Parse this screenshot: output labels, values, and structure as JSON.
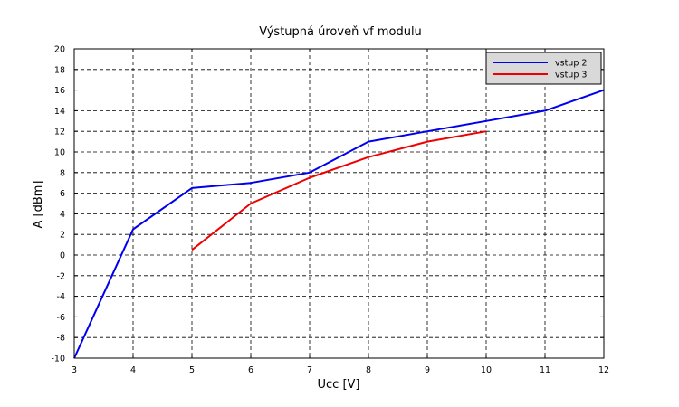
{
  "chart_data": {
    "type": "line",
    "title": "Výstupná úroveň vf modulu",
    "xlabel": "Ucc [V]",
    "ylabel": "A [dBm]",
    "xlim": [
      3,
      12
    ],
    "ylim": [
      -10,
      20
    ],
    "xticks": [
      3,
      4,
      5,
      6,
      7,
      8,
      9,
      10,
      11,
      12
    ],
    "yticks": [
      -10,
      -8,
      -6,
      -4,
      -2,
      0,
      2,
      4,
      6,
      8,
      10,
      12,
      14,
      16,
      18,
      20
    ],
    "grid": true,
    "legend_position": "top-right",
    "series": [
      {
        "name": "vstup 2",
        "color": "#0000ee",
        "x": [
          3,
          4,
          5,
          6,
          7,
          8,
          9,
          10,
          11,
          12
        ],
        "y": [
          -10,
          2.5,
          6.5,
          7,
          8,
          11,
          12,
          13,
          14,
          16
        ]
      },
      {
        "name": "vstup 3",
        "color": "#ee0000",
        "x": [
          5,
          6,
          7,
          8,
          9,
          10
        ],
        "y": [
          0.5,
          5,
          7.5,
          9.5,
          11,
          12
        ]
      }
    ]
  }
}
